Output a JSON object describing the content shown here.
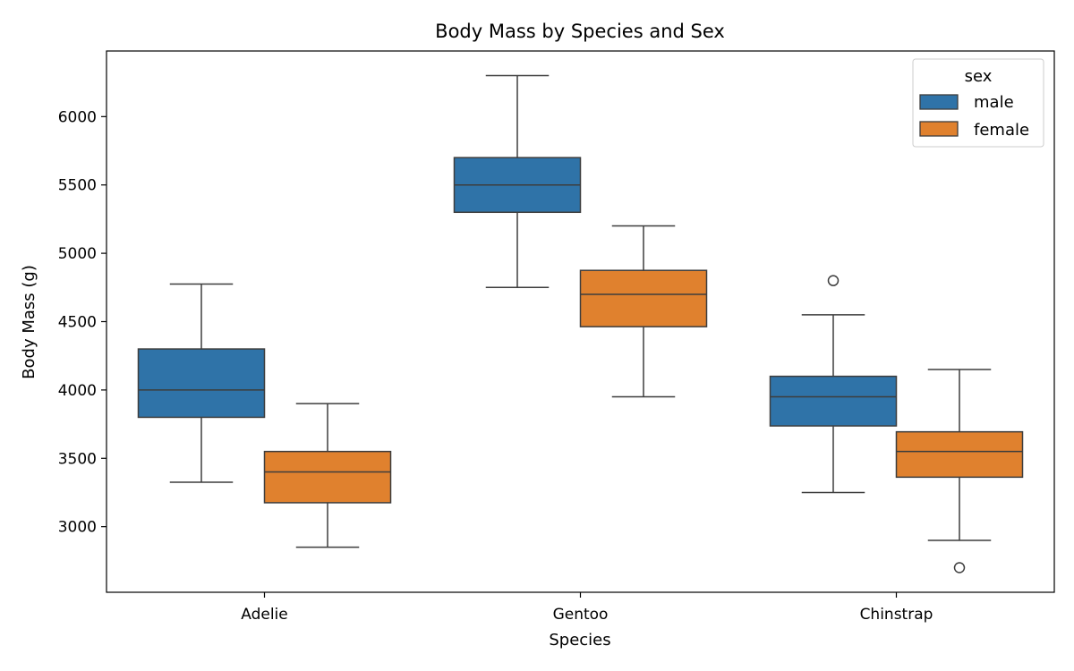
{
  "chart_data": {
    "type": "box",
    "title": "Body Mass by Species and Sex",
    "xlabel": "Species",
    "ylabel": "Body Mass (g)",
    "categories": [
      "Adelie",
      "Gentoo",
      "Chinstrap"
    ],
    "yticks": [
      3000,
      3500,
      4000,
      4500,
      5000,
      5500,
      6000
    ],
    "ylim": [
      2520,
      6480
    ],
    "legend": {
      "title": "sex",
      "placement": "top-right"
    },
    "series": [
      {
        "name": "male",
        "color": "#2f73a8",
        "boxes": [
          {
            "whisker_low": 3325,
            "q1": 3800,
            "median": 4000,
            "q3": 4300,
            "whisker_high": 4775,
            "outliers": []
          },
          {
            "whisker_low": 4750,
            "q1": 5300,
            "median": 5500,
            "q3": 5700,
            "whisker_high": 6300,
            "outliers": []
          },
          {
            "whisker_low": 3250,
            "q1": 3737,
            "median": 3950,
            "q3": 4100,
            "whisker_high": 4550,
            "outliers": [
              4800
            ]
          }
        ]
      },
      {
        "name": "female",
        "color": "#e0812e",
        "boxes": [
          {
            "whisker_low": 2850,
            "q1": 3175,
            "median": 3400,
            "q3": 3550,
            "whisker_high": 3900,
            "outliers": []
          },
          {
            "whisker_low": 3950,
            "q1": 4463,
            "median": 4700,
            "q3": 4875,
            "whisker_high": 5200,
            "outliers": []
          },
          {
            "whisker_low": 2900,
            "q1": 3362,
            "median": 3550,
            "q3": 3694,
            "whisker_high": 4150,
            "outliers": [
              2700
            ]
          }
        ]
      }
    ]
  }
}
